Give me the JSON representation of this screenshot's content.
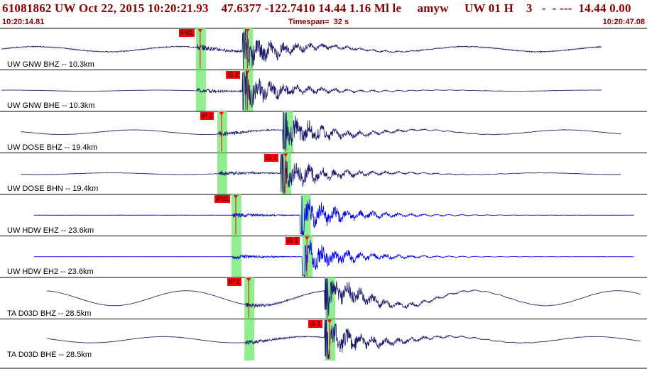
{
  "header": {
    "event_line": "61081862 UW Oct 22, 2015 10:20:21.93    47.6377 -122.7410 14.44 1.16 Ml le     amyw     UW 01 H    3   -  - ---  14.44 0.00",
    "start_time": "10:20:14.81",
    "timespan": "Timespan=  32 s",
    "end_time": "10:20:47.08"
  },
  "colors": {
    "header_text": "#8b0000",
    "trace_dark": "#1a1a6e",
    "trace_blue": "#0000ee",
    "pick_window": "#90ee90",
    "pick_tag": "#ff0000",
    "divider": "#000000"
  },
  "channels": [
    {
      "label": "UW GNW BHZ -- 10.3km",
      "color": "dark",
      "trace_start": 0.0,
      "trace_end": 0.93,
      "noise": 0.18,
      "swell": 0.25,
      "p_arrival": 0.305,
      "s_arrival": 0.378,
      "picks": [
        {
          "tag": "iPd1",
          "at": 0.305
        },
        {
          "tag": "",
          "at": 0.378
        }
      ]
    },
    {
      "label": "UW GNW BHE -- 10.3km",
      "color": "dark",
      "trace_start": 0.0,
      "trace_end": 0.93,
      "noise": 0.06,
      "swell": 0.05,
      "p_arrival": 0.305,
      "s_arrival": 0.378,
      "picks": [
        {
          "tag": "iS 2",
          "at": 0.378
        }
      ]
    },
    {
      "label": "UW DOSE BHZ -- 19.4km",
      "color": "dark",
      "trace_start": 0.03,
      "trace_end": 0.96,
      "noise": 0.08,
      "swell": 0.22,
      "p_arrival": 0.338,
      "s_arrival": 0.44,
      "picks": [
        {
          "tag": "iP 1",
          "at": 0.338
        }
      ]
    },
    {
      "label": "UW DOSE BHN -- 19.4km",
      "color": "dark",
      "trace_start": 0.03,
      "trace_end": 0.96,
      "noise": 0.07,
      "swell": 0.08,
      "p_arrival": 0.338,
      "s_arrival": 0.437,
      "picks": [
        {
          "tag": "iS 1",
          "at": 0.437
        }
      ]
    },
    {
      "label": "UW HDW EHZ -- 23.6km",
      "color": "blue",
      "trace_start": 0.05,
      "trace_end": 0.98,
      "noise": 0.04,
      "swell": 0.0,
      "p_arrival": 0.36,
      "s_arrival": 0.467,
      "picks": [
        {
          "tag": "iPd1",
          "at": 0.36
        }
      ]
    },
    {
      "label": "UW HDW EH2 -- 23.6km",
      "color": "blue",
      "trace_start": 0.05,
      "trace_end": 0.98,
      "noise": 0.03,
      "swell": 0.0,
      "p_arrival": 0.36,
      "s_arrival": 0.47,
      "picks": [
        {
          "tag": "iS 1",
          "at": 0.47
        }
      ]
    },
    {
      "label": "TA D03D BHZ -- 28.5km",
      "color": "dark",
      "trace_start": 0.07,
      "trace_end": 0.99,
      "noise": 0.05,
      "swell": 0.72,
      "p_arrival": 0.38,
      "s_arrival": 0.505,
      "picks": [
        {
          "tag": "iP 1",
          "at": 0.38
        }
      ]
    },
    {
      "label": "TA D03D BHE -- 28.5km",
      "color": "dark",
      "trace_start": 0.07,
      "trace_end": 0.99,
      "noise": 0.06,
      "swell": 0.3,
      "p_arrival": 0.38,
      "s_arrival": 0.505,
      "picks": [
        {
          "tag": "iS 1",
          "at": 0.505
        }
      ]
    }
  ]
}
